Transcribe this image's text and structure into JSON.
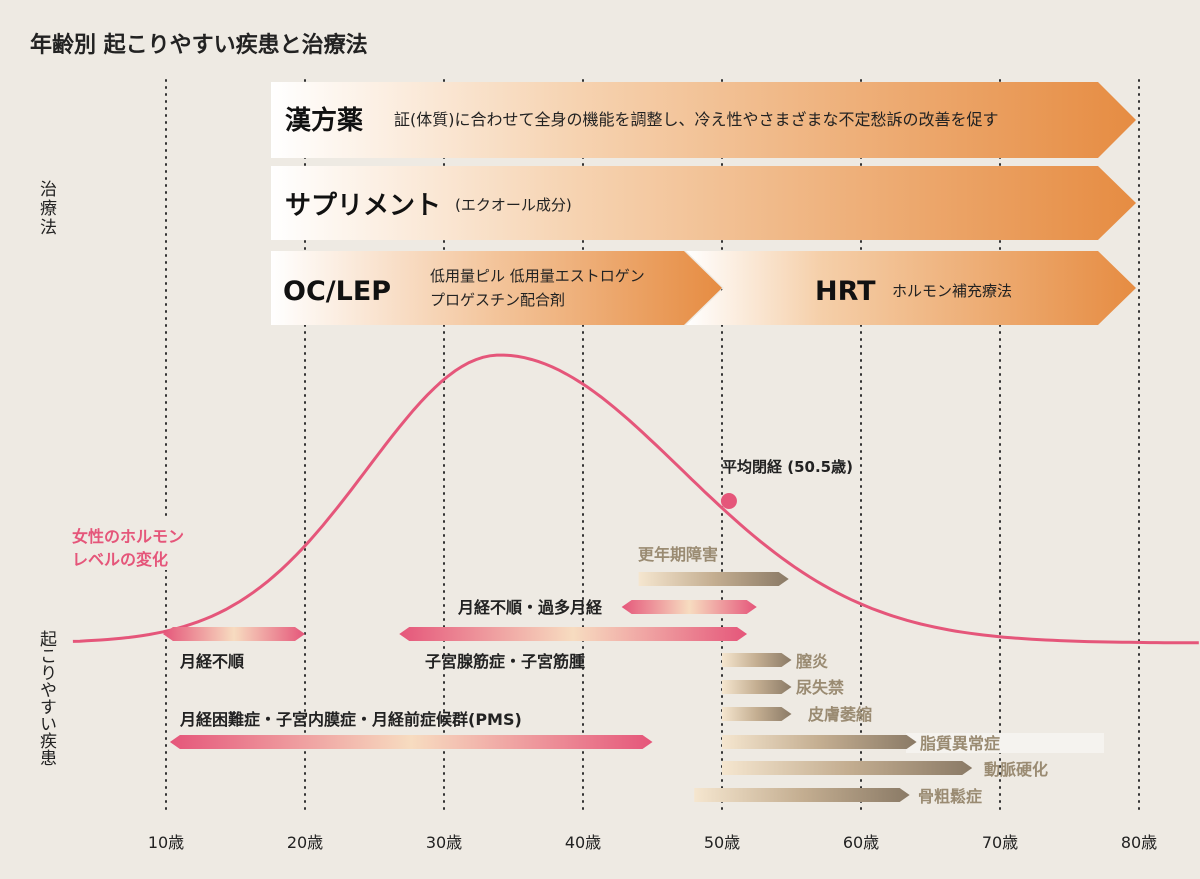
{
  "title": "年齢別 起こりやすい疾患と治療法",
  "side_labels": {
    "treatment": "治療法",
    "disease": "起こりやすい疾患"
  },
  "treatments": [
    {
      "name": "漢方薬",
      "desc": "証(体質)に合わせて全身の機能を調整し、冷え性やさまざまな不定愁訴の改善を促す",
      "from_age": 18,
      "to_age": 81.5
    },
    {
      "name": "サプリメント",
      "desc": "(エクオール成分)",
      "from_age": 18,
      "to_age": 81.5
    },
    {
      "name": "OC/LEP",
      "desc_lines": [
        "低用量ピル 低用量エストロゲン",
        "プロゲスチン配合剤"
      ],
      "from_age": 18,
      "to_age": 51
    },
    {
      "name": "HRT",
      "desc": "ホルモン補充療法",
      "from_age": 51,
      "to_age": 81.5
    }
  ],
  "hormone_curve": {
    "label_lines": [
      "女性のホルモン",
      "レベルの変化"
    ],
    "color": "#e5567a"
  },
  "menopause": {
    "label": "平均閉経 (50.5歳)",
    "age": 50.5
  },
  "diseases": [
    {
      "name": "更年期障害",
      "from_age": 44,
      "to_age": 54.8,
      "style": "brown"
    },
    {
      "name": "月経不順・過多月経",
      "from_age": 43.5,
      "to_age": 52.5,
      "style": "pink"
    },
    {
      "name": "月経不順",
      "from_age": 10.5,
      "to_age": 20,
      "style": "pink"
    },
    {
      "name": "子宮腺筋症・子宮筋腫",
      "from_age": 27.5,
      "to_age": 51.8,
      "style": "pink"
    },
    {
      "name": "膣炎",
      "from_age": 50,
      "to_age": 55,
      "style": "brown"
    },
    {
      "name": "尿失禁",
      "from_age": 50,
      "to_age": 55,
      "style": "brown"
    },
    {
      "name": "皮膚萎縮",
      "from_age": 50,
      "to_age": 55,
      "style": "brown"
    },
    {
      "name": "月経困難症・子宮内膜症・月経前症候群(PMS)",
      "from_age": 11,
      "to_age": 45,
      "style": "pink"
    },
    {
      "name": "脂質異常症",
      "from_age": 50,
      "to_age": 64,
      "style": "brown"
    },
    {
      "name": "動脈硬化",
      "from_age": 50,
      "to_age": 68,
      "style": "brown"
    },
    {
      "name": "骨粗鬆症",
      "from_age": 48,
      "to_age": 63.5,
      "style": "brown"
    }
  ],
  "age_ticks": [
    "10歳",
    "20歳",
    "30歳",
    "40歳",
    "50歳",
    "60歳",
    "70歳",
    "80歳"
  ],
  "colors": {
    "background": "#eeeae3",
    "orange": "#e8924a",
    "pink": "#e5567a",
    "brown": "#8a7a66",
    "disease_text_brown": "#9a8b72"
  }
}
